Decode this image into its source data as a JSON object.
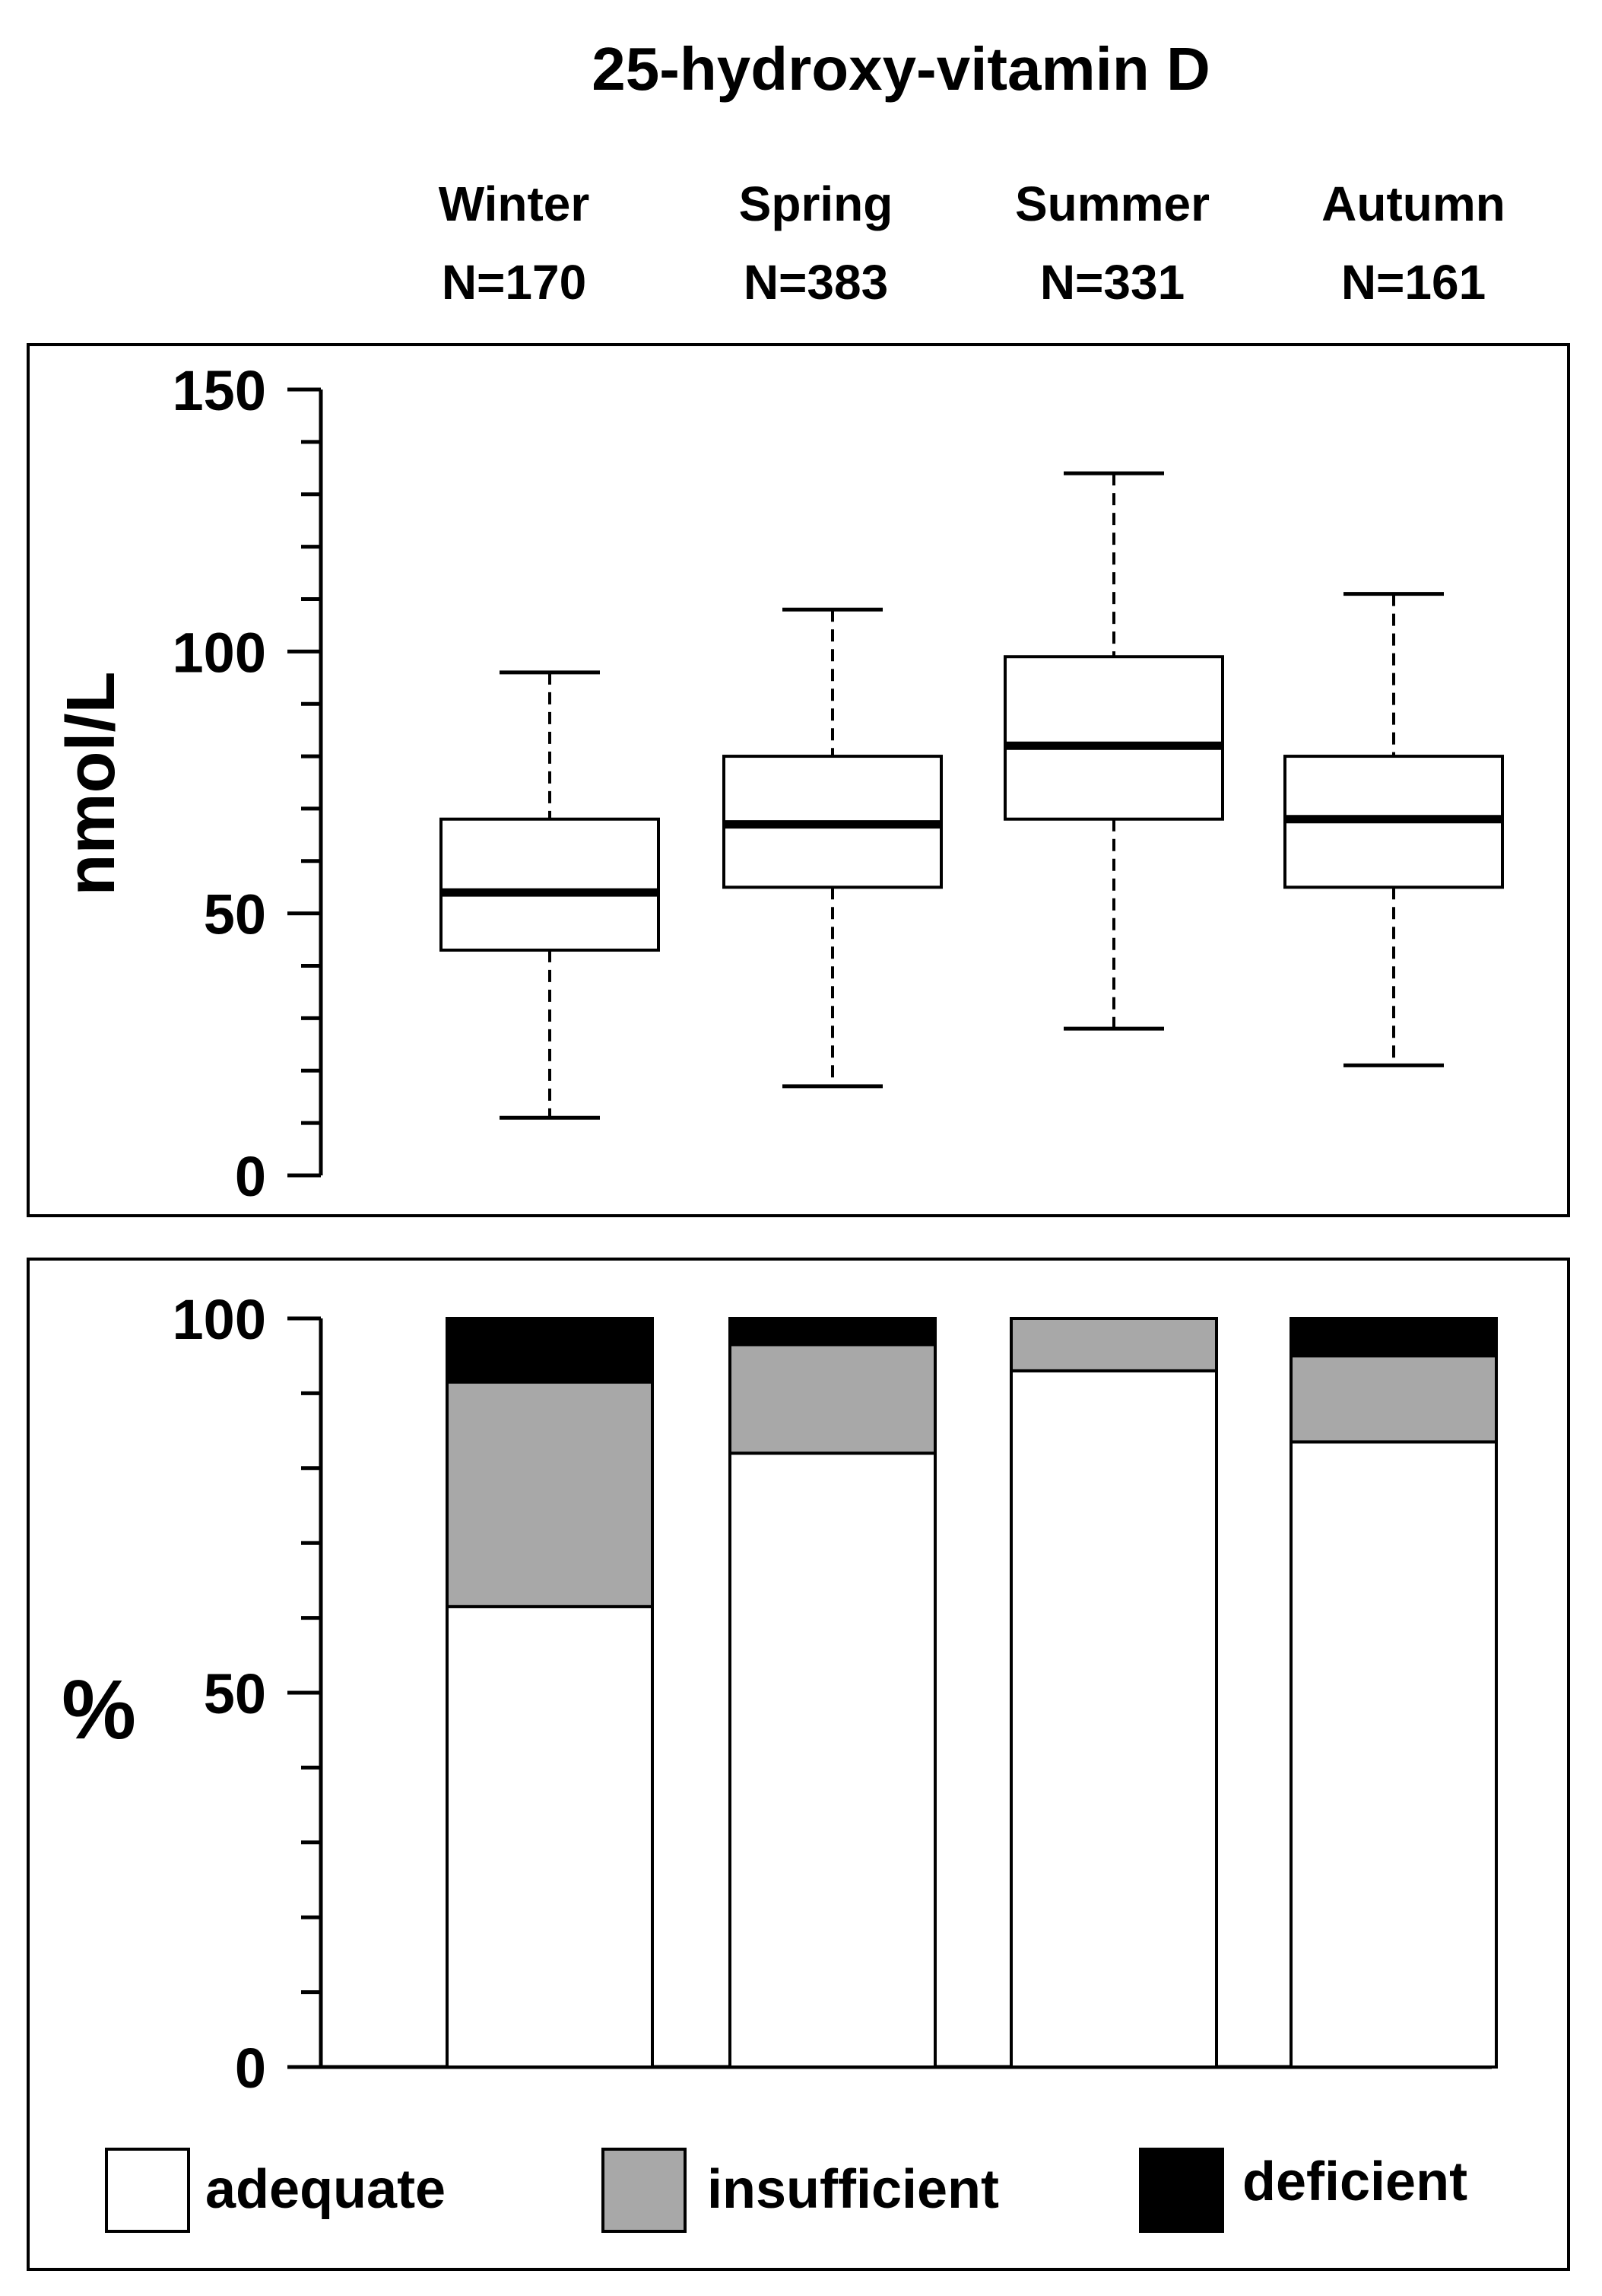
{
  "title": "25-hydroxy-vitamin D",
  "seasons": [
    {
      "name": "Winter",
      "n": "N=170"
    },
    {
      "name": "Spring",
      "n": "N=383"
    },
    {
      "name": "Summer",
      "n": "N=331"
    },
    {
      "name": "Autumn",
      "n": "N=161"
    }
  ],
  "chart_data": [
    {
      "type": "boxplot",
      "ylabel": "nmol/L",
      "ylim": [
        0,
        150
      ],
      "yticks": [
        0,
        50,
        100,
        150
      ],
      "categories": [
        "Winter",
        "Spring",
        "Summer",
        "Autumn"
      ],
      "boxes": [
        {
          "min": 11,
          "q1": 43,
          "median": 54,
          "q3": 68,
          "max": 96
        },
        {
          "min": 17,
          "q1": 55,
          "median": 67,
          "q3": 80,
          "max": 108
        },
        {
          "min": 28,
          "q1": 68,
          "median": 82,
          "q3": 99,
          "max": 134
        },
        {
          "min": 21,
          "q1": 55,
          "median": 68,
          "q3": 80,
          "max": 111
        }
      ],
      "grid": false
    },
    {
      "type": "bar",
      "stacked": true,
      "ylabel": "%",
      "ylim": [
        0,
        100
      ],
      "yticks": [
        0,
        50,
        100
      ],
      "categories": [
        "Winter",
        "Spring",
        "Summer",
        "Autumn"
      ],
      "series": [
        {
          "name": "adequate",
          "color": "#ffffff",
          "values": [
            61.5,
            82,
            93,
            83.5
          ]
        },
        {
          "name": "insufficient",
          "color": "#a8a8a8",
          "values": [
            30,
            14.5,
            7,
            11.5
          ]
        },
        {
          "name": "deficient",
          "color": "#000000",
          "values": [
            8.5,
            3.5,
            0,
            5
          ]
        }
      ],
      "legend_position": "bottom",
      "grid": false
    }
  ]
}
